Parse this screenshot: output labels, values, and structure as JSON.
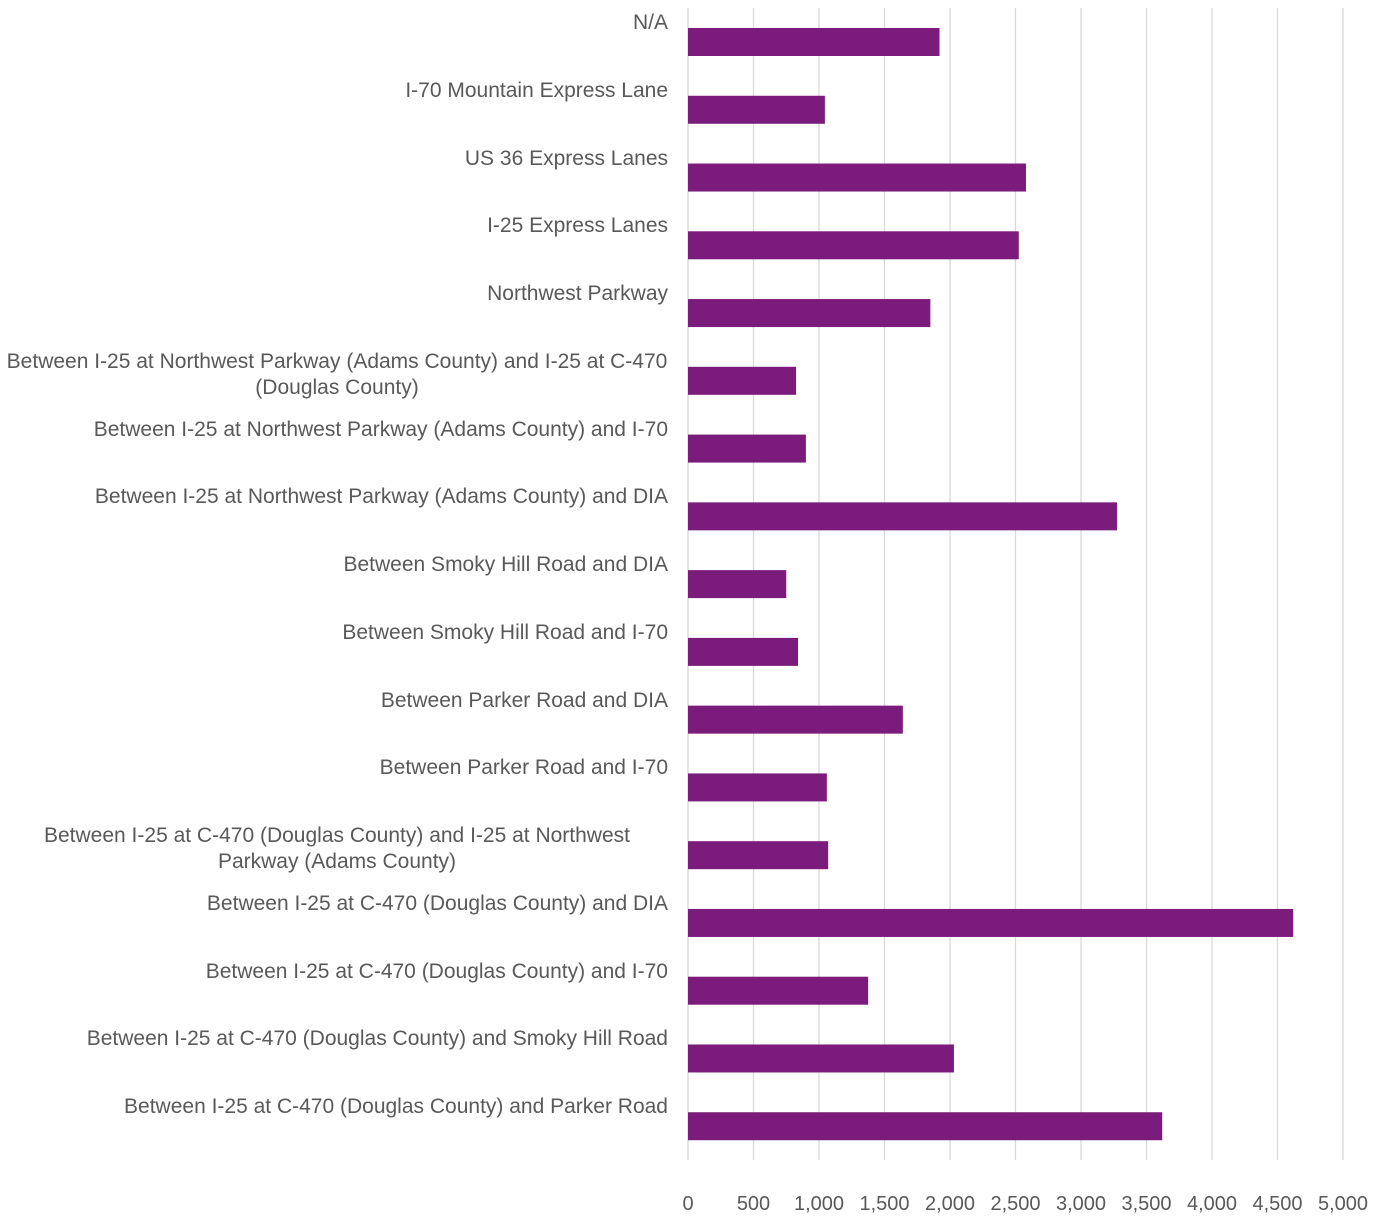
{
  "chart_data": {
    "type": "bar",
    "orientation": "horizontal",
    "categories": [
      "N/A",
      "I-70 Mountain Express Lane",
      "US 36 Express Lanes",
      "I-25 Express Lanes",
      "Northwest Parkway",
      "Between I-25 at Northwest Parkway (Adams County) and I-25 at C-470 (Douglas County)",
      "Between I-25 at Northwest Parkway (Adams County) and I-70",
      "Between I-25 at Northwest Parkway (Adams County) and DIA",
      "Between Smoky Hill Road and DIA",
      "Between Smoky Hill Road and I-70",
      "Between Parker Road and DIA",
      "Between Parker Road and I-70",
      "Between I-25 at C-470 (Douglas County) and I-25 at Northwest Parkway (Adams County)",
      "Between I-25 at C-470 (Douglas County) and DIA",
      "Between I-25 at C-470 (Douglas County) and I-70",
      "Between I-25 at C-470 (Douglas County) and Smoky Hill Road",
      "Between I-25 at C-470 (Douglas County) and Parker Road"
    ],
    "values": [
      1920,
      1045,
      2580,
      2525,
      1850,
      825,
      900,
      3275,
      750,
      840,
      1640,
      1060,
      1070,
      4620,
      1375,
      2030,
      3620
    ],
    "color": "#7b1c7c",
    "xlim": [
      0,
      5000
    ],
    "xticks": [
      0,
      500,
      {
        "value": 1000,
        "label": "1,000"
      },
      {
        "value": 1500,
        "label": "1,500"
      },
      {
        "value": 2000,
        "label": "2,000"
      },
      {
        "value": 2500,
        "label": "2,500"
      },
      {
        "value": 3000,
        "label": "3,000"
      },
      {
        "value": 3500,
        "label": "3,500"
      },
      {
        "value": 4000,
        "label": "4,000"
      },
      {
        "value": 4500,
        "label": "4,500"
      },
      {
        "value": 5000,
        "label": "5,000"
      }
    ],
    "grid": true
  }
}
